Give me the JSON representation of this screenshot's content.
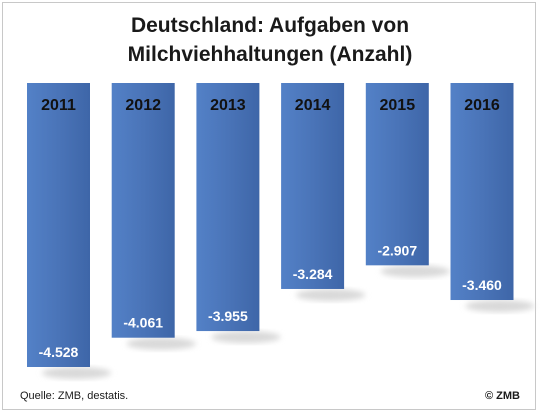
{
  "chart_data": {
    "type": "bar",
    "title_line1": "Deutschland: Aufgaben von",
    "title_line2": "Milchviehhaltungen (Anzahl)",
    "categories": [
      "2011",
      "2012",
      "2013",
      "2014",
      "2015",
      "2016"
    ],
    "value_labels": [
      "-4.528",
      "-4.061",
      "-3.955",
      "-3.284",
      "-2.907",
      "-3.460"
    ],
    "values": [
      -4528,
      -4061,
      -3955,
      -3284,
      -2907,
      -3460
    ],
    "ylim": [
      -4528,
      0
    ],
    "grid": false,
    "legend": "none",
    "colors": {
      "bar": "#4a74b8",
      "bar_dark": "#3c63a3",
      "label_text": "#ffffff",
      "category_text": "#111111",
      "shadow": "#d9d9d9"
    }
  },
  "footer": {
    "source": "Quelle: ZMB, destatis.",
    "copyright": "© ZMB"
  }
}
